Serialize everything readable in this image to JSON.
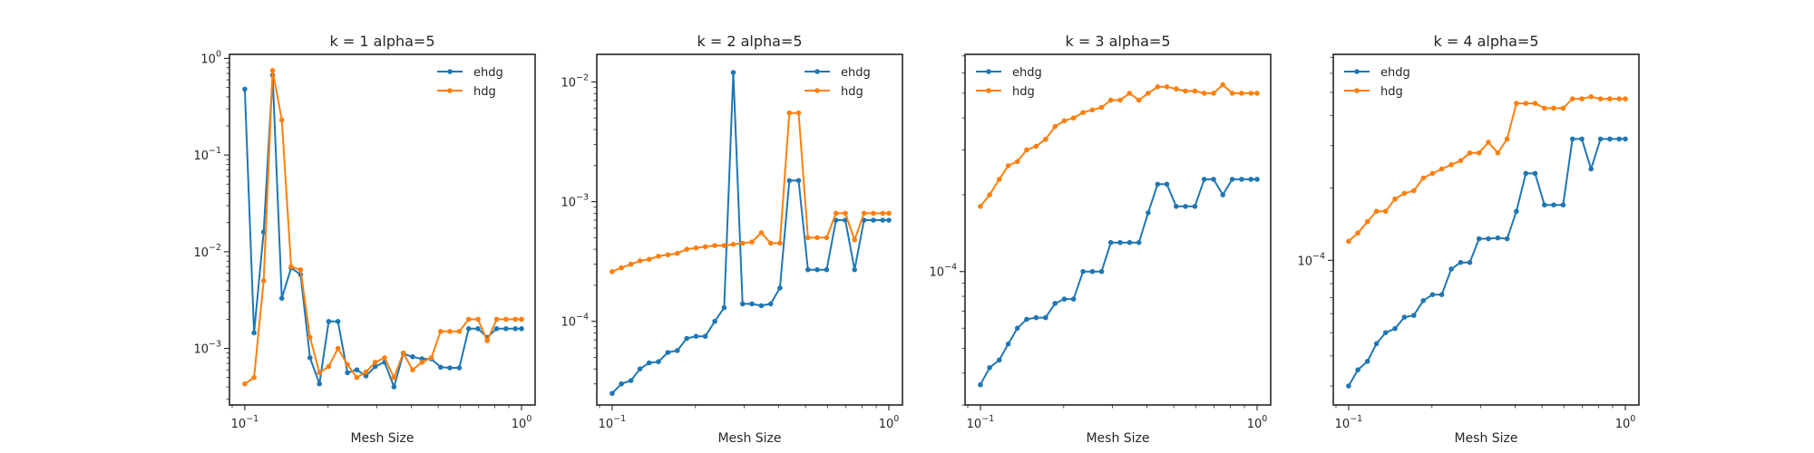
{
  "chart_data": [
    {
      "type": "line",
      "title": "k = 1 alpha=5",
      "xlabel": "Mesh Size",
      "xscale": "log",
      "yscale": "log",
      "xlim": [
        0.088,
        1.12
      ],
      "ylim": [
        0.00026,
        1.1
      ],
      "xticks": [
        {
          "value": 0.1,
          "base": "10",
          "exp": "−1"
        },
        {
          "value": 1,
          "base": "10",
          "exp": "0"
        }
      ],
      "yticks": [
        {
          "value": 0.001,
          "base": "10",
          "exp": "−3"
        },
        {
          "value": 0.01,
          "base": "10",
          "exp": "−2"
        },
        {
          "value": 0.1,
          "base": "10",
          "exp": "−1"
        },
        {
          "value": 1,
          "base": "10",
          "exp": "0"
        }
      ],
      "legend": {
        "loc": "upper right"
      },
      "series": [
        {
          "name": "ehdg",
          "color": "#1f77b4",
          "x": [
            0.1,
            0.108,
            0.117,
            0.126,
            0.136,
            0.147,
            0.159,
            0.172,
            0.186,
            0.201,
            0.217,
            0.235,
            0.254,
            0.274,
            0.296,
            0.32,
            0.346,
            0.374,
            0.404,
            0.437,
            0.472,
            0.51,
            0.551,
            0.596,
            0.644,
            0.696,
            0.752,
            0.813,
            0.879,
            0.95,
            1.0
          ],
          "y": [
            0.48,
            0.00145,
            0.016,
            0.67,
            0.0033,
            0.0068,
            0.0058,
            0.0008,
            0.00043,
            0.0019,
            0.0019,
            0.00056,
            0.0006,
            0.00052,
            0.00065,
            0.00072,
            0.0004,
            0.00088,
            0.00082,
            0.00078,
            0.00078,
            0.00064,
            0.00063,
            0.00063,
            0.0016,
            0.0016,
            0.0013,
            0.0016,
            0.0016,
            0.0016,
            0.0016
          ]
        },
        {
          "name": "hdg",
          "color": "#ff7f0e",
          "x": [
            0.1,
            0.108,
            0.117,
            0.126,
            0.136,
            0.147,
            0.159,
            0.172,
            0.186,
            0.201,
            0.217,
            0.235,
            0.254,
            0.274,
            0.296,
            0.32,
            0.346,
            0.374,
            0.404,
            0.437,
            0.472,
            0.51,
            0.551,
            0.596,
            0.644,
            0.696,
            0.752,
            0.813,
            0.879,
            0.95,
            1.0
          ],
          "y": [
            0.00043,
            0.0005,
            0.005,
            0.75,
            0.23,
            0.007,
            0.0065,
            0.0013,
            0.00056,
            0.00065,
            0.001,
            0.00068,
            0.0005,
            0.00057,
            0.00072,
            0.0008,
            0.0005,
            0.0009,
            0.0006,
            0.00072,
            0.0008,
            0.0015,
            0.0015,
            0.0015,
            0.002,
            0.002,
            0.0012,
            0.002,
            0.002,
            0.002,
            0.002
          ]
        }
      ]
    },
    {
      "type": "line",
      "title": "k = 2 alpha=5",
      "xlabel": "Mesh Size",
      "xscale": "log",
      "yscale": "log",
      "xlim": [
        0.088,
        1.12
      ],
      "ylim": [
        2e-05,
        0.017
      ],
      "xticks": [
        {
          "value": 0.1,
          "base": "10",
          "exp": "−1"
        },
        {
          "value": 1,
          "base": "10",
          "exp": "0"
        }
      ],
      "yticks": [
        {
          "value": 0.0001,
          "base": "10",
          "exp": "−4"
        },
        {
          "value": 0.001,
          "base": "10",
          "exp": "−3"
        },
        {
          "value": 0.01,
          "base": "10",
          "exp": "−2"
        }
      ],
      "legend": {
        "loc": "upper right"
      },
      "series": [
        {
          "name": "ehdg",
          "color": "#1f77b4",
          "x": [
            0.1,
            0.108,
            0.117,
            0.126,
            0.136,
            0.147,
            0.159,
            0.172,
            0.186,
            0.201,
            0.217,
            0.235,
            0.254,
            0.274,
            0.296,
            0.32,
            0.346,
            0.374,
            0.404,
            0.437,
            0.472,
            0.51,
            0.551,
            0.596,
            0.644,
            0.696,
            0.752,
            0.813,
            0.879,
            0.95,
            1.0
          ],
          "y": [
            2.5e-05,
            3e-05,
            3.2e-05,
            4e-05,
            4.5e-05,
            4.6e-05,
            5.5e-05,
            5.7e-05,
            7.2e-05,
            7.5e-05,
            7.5e-05,
            0.0001,
            0.00013,
            0.012,
            0.00014,
            0.00014,
            0.000135,
            0.00014,
            0.00019,
            0.0015,
            0.0015,
            0.00027,
            0.00027,
            0.00027,
            0.0007,
            0.0007,
            0.00027,
            0.0007,
            0.0007,
            0.0007,
            0.0007
          ]
        },
        {
          "name": "hdg",
          "color": "#ff7f0e",
          "x": [
            0.1,
            0.108,
            0.117,
            0.126,
            0.136,
            0.147,
            0.159,
            0.172,
            0.186,
            0.201,
            0.217,
            0.235,
            0.254,
            0.274,
            0.296,
            0.32,
            0.346,
            0.374,
            0.404,
            0.437,
            0.472,
            0.51,
            0.551,
            0.596,
            0.644,
            0.696,
            0.752,
            0.813,
            0.879,
            0.95,
            1.0
          ],
          "y": [
            0.00026,
            0.00028,
            0.0003,
            0.00032,
            0.00033,
            0.00035,
            0.00036,
            0.00037,
            0.0004,
            0.00041,
            0.00042,
            0.00043,
            0.00043,
            0.00044,
            0.00045,
            0.00046,
            0.00055,
            0.00045,
            0.00045,
            0.0055,
            0.0055,
            0.0005,
            0.0005,
            0.0005,
            0.0008,
            0.0008,
            0.00048,
            0.0008,
            0.0008,
            0.0008,
            0.0008
          ]
        }
      ]
    },
    {
      "type": "line",
      "title": "k = 3 alpha=5",
      "xlabel": "Mesh Size",
      "xscale": "log",
      "yscale": "log",
      "xlim": [
        0.088,
        1.12
      ],
      "ylim": [
        3e-05,
        0.00071
      ],
      "xticks": [
        {
          "value": 0.1,
          "base": "10",
          "exp": "−1"
        },
        {
          "value": 1,
          "base": "10",
          "exp": "0"
        }
      ],
      "yticks": [
        {
          "value": 0.0001,
          "base": "10",
          "exp": "−4"
        }
      ],
      "legend": {
        "loc": "upper left"
      },
      "series": [
        {
          "name": "ehdg",
          "color": "#1f77b4",
          "x": [
            0.1,
            0.108,
            0.117,
            0.126,
            0.136,
            0.147,
            0.159,
            0.172,
            0.186,
            0.201,
            0.217,
            0.235,
            0.254,
            0.274,
            0.296,
            0.32,
            0.346,
            0.374,
            0.404,
            0.437,
            0.472,
            0.51,
            0.551,
            0.596,
            0.644,
            0.696,
            0.752,
            0.813,
            0.879,
            0.95,
            1.0
          ],
          "y": [
            3.6e-05,
            4.2e-05,
            4.5e-05,
            5.2e-05,
            6e-05,
            6.5e-05,
            6.6e-05,
            6.6e-05,
            7.5e-05,
            7.8e-05,
            7.8e-05,
            0.0001,
            0.0001,
            0.0001,
            0.00013,
            0.00013,
            0.00013,
            0.00013,
            0.00017,
            0.00022,
            0.00022,
            0.00018,
            0.00018,
            0.00018,
            0.00023,
            0.00023,
            0.0002,
            0.00023,
            0.00023,
            0.00023,
            0.00023
          ]
        },
        {
          "name": "hdg",
          "color": "#ff7f0e",
          "x": [
            0.1,
            0.108,
            0.117,
            0.126,
            0.136,
            0.147,
            0.159,
            0.172,
            0.186,
            0.201,
            0.217,
            0.235,
            0.254,
            0.274,
            0.296,
            0.32,
            0.346,
            0.374,
            0.404,
            0.437,
            0.472,
            0.51,
            0.551,
            0.596,
            0.644,
            0.696,
            0.752,
            0.813,
            0.879,
            0.95,
            1.0
          ],
          "y": [
            0.00018,
            0.0002,
            0.00023,
            0.00026,
            0.00027,
            0.0003,
            0.00031,
            0.00033,
            0.00037,
            0.00039,
            0.0004,
            0.00042,
            0.00043,
            0.00044,
            0.00047,
            0.00047,
            0.0005,
            0.00047,
            0.0005,
            0.00053,
            0.00053,
            0.00052,
            0.00051,
            0.00051,
            0.0005,
            0.0005,
            0.00054,
            0.0005,
            0.0005,
            0.0005,
            0.0005
          ]
        }
      ]
    },
    {
      "type": "line",
      "title": "k = 4 alpha=5",
      "xlabel": "Mesh Size",
      "xscale": "log",
      "yscale": "log",
      "xlim": [
        0.088,
        1.12
      ],
      "ylim": [
        2.5e-05,
        0.00072
      ],
      "xticks": [
        {
          "value": 0.1,
          "base": "10",
          "exp": "−1"
        },
        {
          "value": 1,
          "base": "10",
          "exp": "0"
        }
      ],
      "yticks": [
        {
          "value": 0.0001,
          "base": "10",
          "exp": "−4"
        }
      ],
      "legend": {
        "loc": "upper left"
      },
      "series": [
        {
          "name": "ehdg",
          "color": "#1f77b4",
          "x": [
            0.1,
            0.108,
            0.117,
            0.126,
            0.136,
            0.147,
            0.159,
            0.172,
            0.186,
            0.201,
            0.217,
            0.235,
            0.254,
            0.274,
            0.296,
            0.32,
            0.346,
            0.374,
            0.404,
            0.437,
            0.472,
            0.51,
            0.551,
            0.596,
            0.644,
            0.696,
            0.752,
            0.813,
            0.879,
            0.95,
            1.0
          ],
          "y": [
            3e-05,
            3.5e-05,
            3.8e-05,
            4.5e-05,
            5e-05,
            5.2e-05,
            5.8e-05,
            5.9e-05,
            6.8e-05,
            7.2e-05,
            7.2e-05,
            9.2e-05,
            9.8e-05,
            9.8e-05,
            0.000123,
            0.000123,
            0.000124,
            0.000123,
            0.00016,
            0.00023,
            0.00023,
            0.00017,
            0.00017,
            0.00017,
            0.00032,
            0.00032,
            0.00024,
            0.00032,
            0.00032,
            0.00032,
            0.00032
          ]
        },
        {
          "name": "hdg",
          "color": "#ff7f0e",
          "x": [
            0.1,
            0.108,
            0.117,
            0.126,
            0.136,
            0.147,
            0.159,
            0.172,
            0.186,
            0.201,
            0.217,
            0.235,
            0.254,
            0.274,
            0.296,
            0.32,
            0.346,
            0.374,
            0.404,
            0.437,
            0.472,
            0.51,
            0.551,
            0.596,
            0.644,
            0.696,
            0.752,
            0.813,
            0.879,
            0.95,
            1.0
          ],
          "y": [
            0.00012,
            0.00013,
            0.000145,
            0.00016,
            0.00016,
            0.00018,
            0.00019,
            0.000195,
            0.00022,
            0.00023,
            0.00024,
            0.00025,
            0.00026,
            0.00028,
            0.00028,
            0.00031,
            0.00028,
            0.00032,
            0.00045,
            0.00045,
            0.00045,
            0.00043,
            0.00043,
            0.00043,
            0.00047,
            0.00047,
            0.00048,
            0.00047,
            0.00047,
            0.00047,
            0.00047
          ]
        }
      ]
    }
  ]
}
